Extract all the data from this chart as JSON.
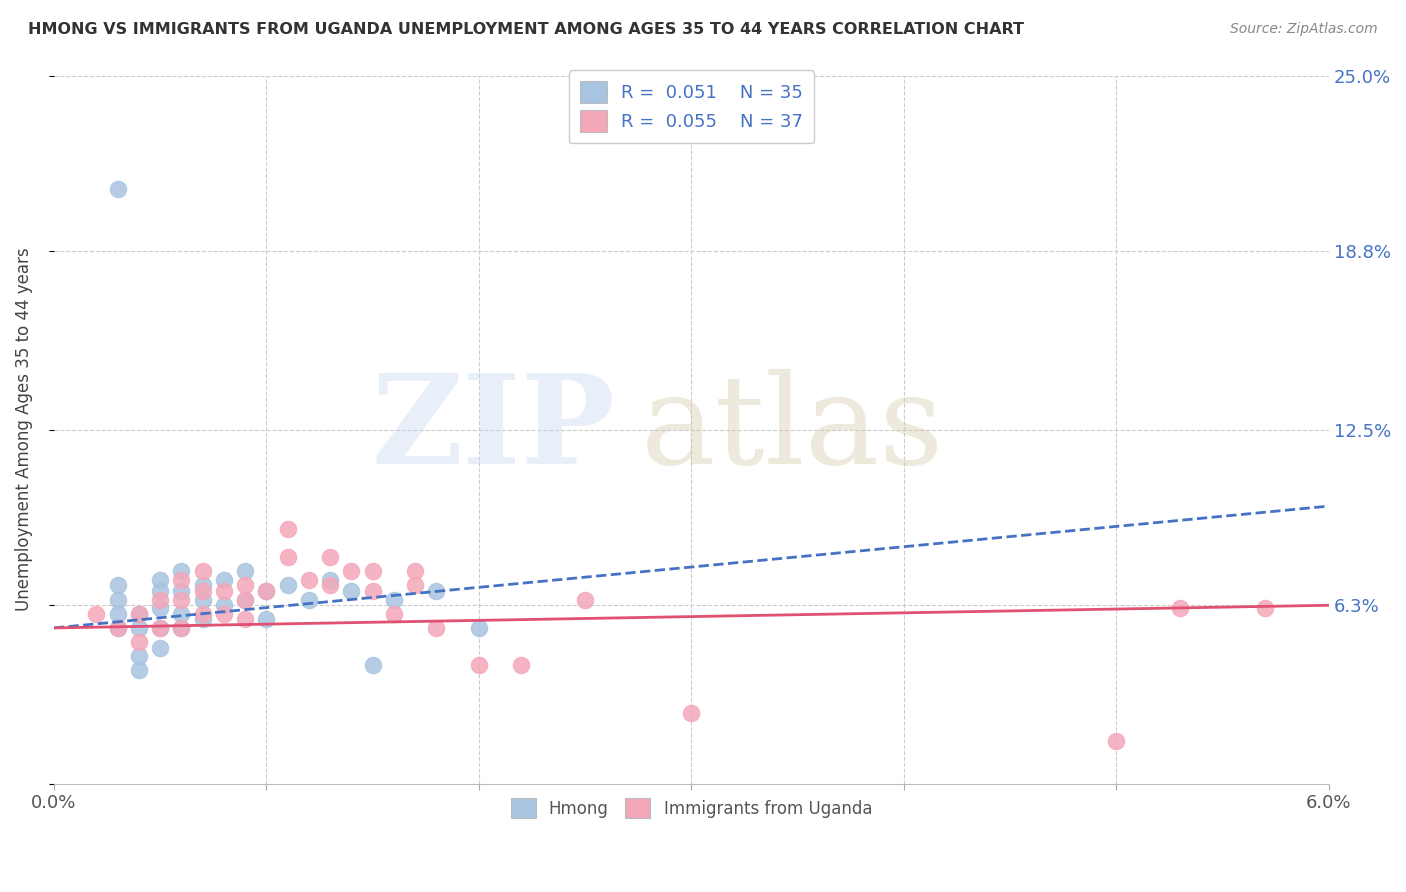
{
  "title": "HMONG VS IMMIGRANTS FROM UGANDA UNEMPLOYMENT AMONG AGES 35 TO 44 YEARS CORRELATION CHART",
  "source": "Source: ZipAtlas.com",
  "ylabel": "Unemployment Among Ages 35 to 44 years",
  "xlim": [
    0.0,
    0.06
  ],
  "ylim": [
    0.0,
    0.25
  ],
  "hmong_R": 0.051,
  "hmong_N": 35,
  "uganda_R": 0.055,
  "uganda_N": 37,
  "hmong_color": "#a8c4e0",
  "uganda_color": "#f4a7b9",
  "hmong_line_color": "#4472c4",
  "uganda_line_color": "#e05070",
  "title_color": "#333333",
  "source_color": "#888888",
  "grid_color": "#cccccc",
  "label_color": "#4472c4",
  "hmong_x": [
    0.003,
    0.003,
    0.003,
    0.003,
    0.004,
    0.004,
    0.004,
    0.004,
    0.005,
    0.005,
    0.005,
    0.005,
    0.005,
    0.006,
    0.006,
    0.006,
    0.006,
    0.007,
    0.007,
    0.007,
    0.008,
    0.008,
    0.009,
    0.009,
    0.01,
    0.01,
    0.011,
    0.012,
    0.013,
    0.014,
    0.015,
    0.016,
    0.018,
    0.02,
    0.003
  ],
  "hmong_y": [
    0.055,
    0.06,
    0.065,
    0.07,
    0.04,
    0.045,
    0.055,
    0.06,
    0.048,
    0.055,
    0.062,
    0.068,
    0.072,
    0.055,
    0.06,
    0.068,
    0.075,
    0.058,
    0.065,
    0.07,
    0.063,
    0.072,
    0.065,
    0.075,
    0.058,
    0.068,
    0.07,
    0.065,
    0.072,
    0.068,
    0.042,
    0.065,
    0.068,
    0.055,
    0.21
  ],
  "uganda_x": [
    0.002,
    0.003,
    0.004,
    0.004,
    0.005,
    0.005,
    0.006,
    0.006,
    0.006,
    0.007,
    0.007,
    0.007,
    0.008,
    0.008,
    0.009,
    0.009,
    0.009,
    0.01,
    0.011,
    0.011,
    0.012,
    0.013,
    0.013,
    0.014,
    0.015,
    0.015,
    0.016,
    0.017,
    0.017,
    0.018,
    0.02,
    0.022,
    0.025,
    0.03,
    0.05,
    0.053,
    0.057
  ],
  "uganda_y": [
    0.06,
    0.055,
    0.05,
    0.06,
    0.055,
    0.065,
    0.055,
    0.065,
    0.072,
    0.06,
    0.068,
    0.075,
    0.06,
    0.068,
    0.058,
    0.065,
    0.07,
    0.068,
    0.08,
    0.09,
    0.072,
    0.07,
    0.08,
    0.075,
    0.068,
    0.075,
    0.06,
    0.07,
    0.075,
    0.055,
    0.042,
    0.042,
    0.065,
    0.025,
    0.015,
    0.062,
    0.062
  ]
}
